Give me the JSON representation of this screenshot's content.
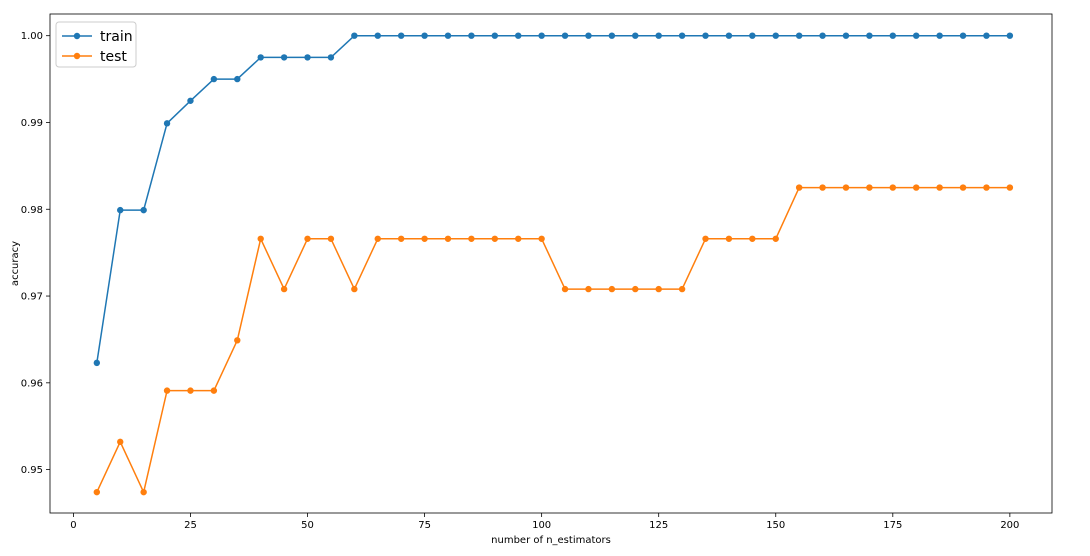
{
  "chart_data": {
    "type": "line",
    "title": "",
    "xlabel": "number of n_estimators",
    "ylabel": "accuracy",
    "xlim": [
      -5,
      209
    ],
    "ylim": [
      0.945,
      1.0025
    ],
    "xticks": [
      0,
      25,
      50,
      75,
      100,
      125,
      150,
      175,
      200
    ],
    "xtick_labels": [
      "0",
      "25",
      "50",
      "75",
      "100",
      "125",
      "150",
      "175",
      "200"
    ],
    "yticks": [
      0.95,
      0.96,
      0.97,
      0.98,
      0.99,
      1.0
    ],
    "ytick_labels": [
      "0.95",
      "0.96",
      "0.97",
      "0.98",
      "0.99",
      "1.00"
    ],
    "grid": false,
    "legend_position": "top-left",
    "x": [
      5,
      10,
      15,
      20,
      25,
      30,
      35,
      40,
      45,
      50,
      55,
      60,
      65,
      70,
      75,
      80,
      85,
      90,
      95,
      100,
      105,
      110,
      115,
      120,
      125,
      130,
      135,
      140,
      145,
      150,
      155,
      160,
      165,
      170,
      175,
      180,
      185,
      190,
      195,
      200
    ],
    "series": [
      {
        "name": "train",
        "color": "#1f77b4",
        "values": [
          0.9623,
          0.9799,
          0.9799,
          0.9899,
          0.9925,
          0.995,
          0.995,
          0.9975,
          0.9975,
          0.9975,
          0.9975,
          1.0,
          1.0,
          1.0,
          1.0,
          1.0,
          1.0,
          1.0,
          1.0,
          1.0,
          1.0,
          1.0,
          1.0,
          1.0,
          1.0,
          1.0,
          1.0,
          1.0,
          1.0,
          1.0,
          1.0,
          1.0,
          1.0,
          1.0,
          1.0,
          1.0,
          1.0,
          1.0,
          1.0,
          1.0
        ]
      },
      {
        "name": "test",
        "color": "#ff7f0e",
        "values": [
          0.9474,
          0.9532,
          0.9474,
          0.9591,
          0.9591,
          0.9591,
          0.9649,
          0.9766,
          0.9708,
          0.9766,
          0.9766,
          0.9708,
          0.9766,
          0.9766,
          0.9766,
          0.9766,
          0.9766,
          0.9766,
          0.9766,
          0.9766,
          0.9708,
          0.9708,
          0.9708,
          0.9708,
          0.9708,
          0.9708,
          0.9766,
          0.9766,
          0.9766,
          0.9766,
          0.9825,
          0.9825,
          0.9825,
          0.9825,
          0.9825,
          0.9825,
          0.9825,
          0.9825,
          0.9825,
          0.9825
        ]
      }
    ]
  }
}
